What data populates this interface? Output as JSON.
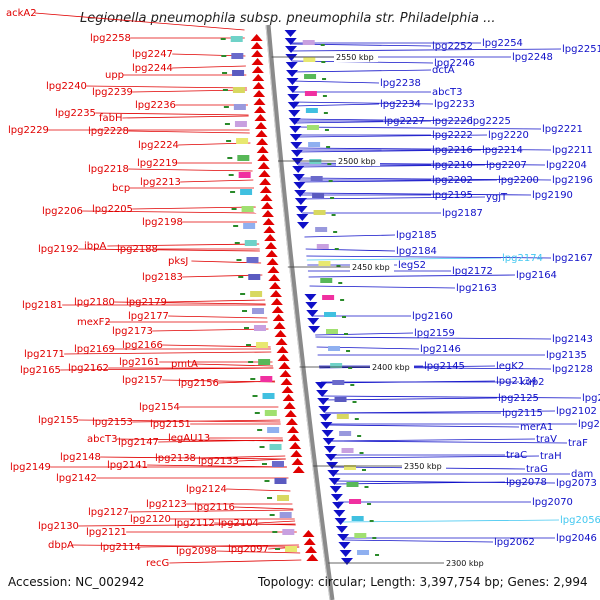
{
  "title": "Legionella pneumophila subsp. pneumophila str. Philadelphia ...",
  "footer": {
    "accession": "Accession: NC_002942",
    "topology": "Topology: circular; Length: 3,397,754 bp; Genes: 2,994"
  },
  "colors": {
    "left_strand": "#e00000",
    "right_strand": "#1010c8",
    "highlight": "#44c8f0",
    "backbone": "#8a8a8a",
    "kbp_tick": "#2a8a2a"
  },
  "scale_labels": [
    "2550 kbp",
    "2500 kbp",
    "2450 kbp",
    "2400 kbp",
    "2350 kbp",
    "2300 kbp"
  ],
  "left_labels": [
    "ackA2",
    "lpg2258",
    "lpg2247",
    "lpg2244",
    "upp",
    "lpg2240",
    "lpg2239",
    "lpg2236",
    "lpg2235",
    "fabH",
    "lpg2229",
    "lpg2228",
    "lpg2224",
    "lpg2219",
    "lpg2218",
    "lpg2213",
    "bcp",
    "lpg2206",
    "lpg2205",
    "lpg2198",
    "lpg2192",
    "ibpA",
    "lpg2188",
    "pksJ",
    "lpg2183",
    "lpg2181",
    "lpg2180",
    "lpg2179",
    "mexF2",
    "lpg2177",
    "lpg2173",
    "lpg2169",
    "lpg2166",
    "lpg2171",
    "lpg2161",
    "pmtA",
    "lpg2165",
    "lpg2162",
    "lpg2157",
    "lpg2156",
    "lpg2154",
    "lpg2155",
    "lpg2153",
    "lpg2151",
    "abcT3",
    "lpg2147",
    "legAU13",
    "lpg2148",
    "lpg2138",
    "lpg2149",
    "lpg2141",
    "lpg2133",
    "lpg2142",
    "lpg2124",
    "lpg2127",
    "lpg2123",
    "lpg2116",
    "lpg2130",
    "lpg2120",
    "lpg2112",
    "lpg2104",
    "lpg2121",
    "dbpA",
    "lpg2114",
    "recG",
    "lpg2098",
    "lpg2097"
  ],
  "right_labels": [
    "lpg2252",
    "lpg2254",
    "lpg2251",
    "lpg2246",
    "lpg2248",
    "dctA",
    "lpg2238",
    "abcT3",
    "lpg2234",
    "lpg2233",
    "lpg2227",
    "lpg2226",
    "lpg2225",
    "lpg2222",
    "lpg2220",
    "lpg2221",
    "lpg2216",
    "lpg2214",
    "lpg2211",
    "lpg2210",
    "lpg2207",
    "lpg2204",
    "lpg2202",
    "lpg2200",
    "lpg2196",
    "lpg2195",
    "ygjT",
    "lpg2190",
    "lpg2187",
    "lpg2185",
    "lpg2184",
    "legS2",
    "lpg2174",
    "lpg2167",
    "lpg2172",
    "lpg2164",
    "lpg2163",
    "lpg2160",
    "lpg2159",
    "lpg2146",
    "lpg2145",
    "legK2",
    "lpg2143",
    "lpg2135",
    "lpg2134",
    "lpg2128",
    "kup2",
    "lpg2125",
    "lpg2111",
    "lpg2115",
    "lpg2102",
    "merA1",
    "lpg2092",
    "traV",
    "traF",
    "traC",
    "traH",
    "traG",
    "dam",
    "lpg2078",
    "lpg2073",
    "lpg2070",
    "lpg2056",
    "lpg2062",
    "lpg2046"
  ],
  "highlighted_genes": [
    "lpg2174",
    "lpg2056"
  ]
}
